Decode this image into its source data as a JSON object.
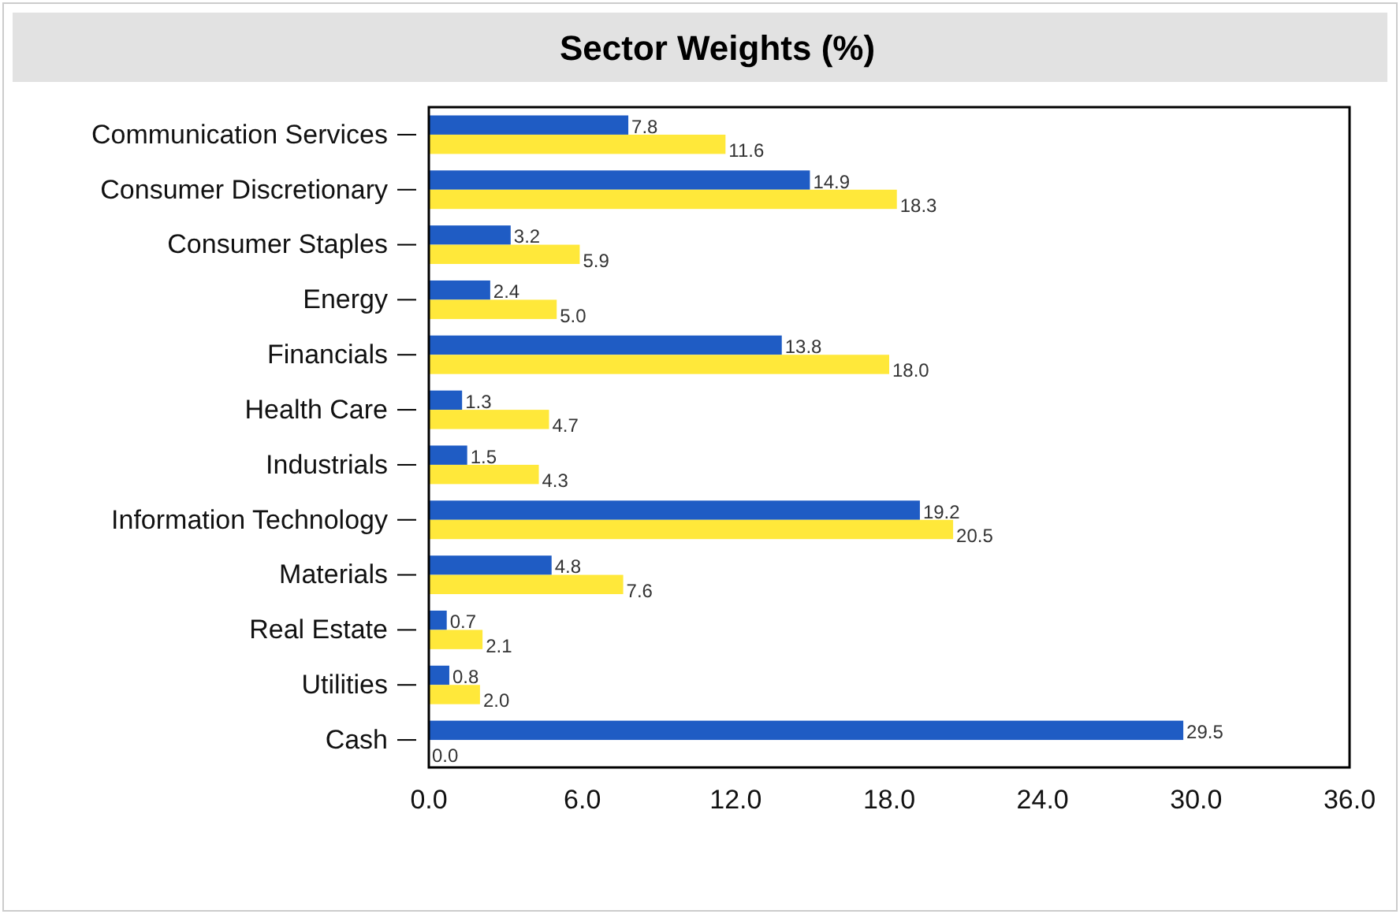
{
  "chart_data": {
    "type": "bar",
    "orientation": "horizontal",
    "title": "Sector Weights (%)",
    "categories": [
      "Communication Services",
      "Consumer Discretionary",
      "Consumer Staples",
      "Energy",
      "Financials",
      "Health Care",
      "Industrials",
      "Information Technology",
      "Materials",
      "Real Estate",
      "Utilities",
      "Cash"
    ],
    "series": [
      {
        "color": "#1f5cc4",
        "values": [
          7.8,
          14.9,
          3.2,
          2.4,
          13.8,
          1.3,
          1.5,
          19.2,
          4.8,
          0.7,
          0.8,
          29.5
        ],
        "value_labels": [
          "7.8",
          "14.9",
          "3.2",
          "2.4",
          "13.8",
          "1.3",
          "1.5",
          "19.2",
          "4.8",
          "0.7",
          "0.8",
          "29.5"
        ]
      },
      {
        "color": "#ffe83a",
        "values": [
          11.6,
          18.3,
          5.9,
          5.0,
          18.0,
          4.7,
          4.3,
          20.5,
          7.6,
          2.1,
          2.0,
          0.0
        ],
        "value_labels": [
          "11.6",
          "18.3",
          "5.9",
          "5.0",
          "18.0",
          "4.7",
          "4.3",
          "20.5",
          "7.6",
          "2.1",
          "2.0",
          "0.0"
        ]
      }
    ],
    "xlim": [
      0,
      36
    ],
    "xticks": [
      {
        "value": 0,
        "label": "0.0"
      },
      {
        "value": 6,
        "label": "6.0"
      },
      {
        "value": 12,
        "label": "12.0"
      },
      {
        "value": 18,
        "label": "18.0"
      },
      {
        "value": 24,
        "label": "24.0"
      },
      {
        "value": 30,
        "label": "30.0"
      },
      {
        "value": 36,
        "label": "36.0"
      }
    ],
    "grid": false
  }
}
